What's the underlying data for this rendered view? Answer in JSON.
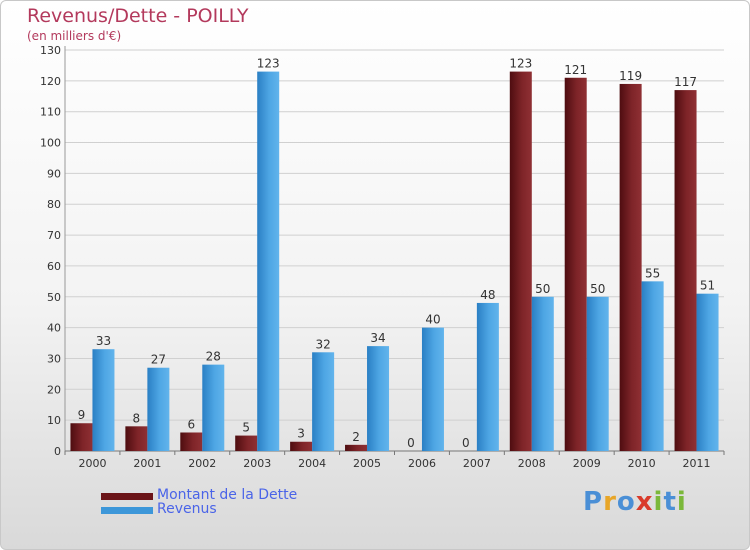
{
  "chart_data": {
    "type": "bar",
    "title": "Revenus/Dette - POILLY",
    "subtitle": "(en milliers d'€)",
    "categories": [
      "2000",
      "2001",
      "2002",
      "2003",
      "2004",
      "2005",
      "2006",
      "2007",
      "2008",
      "2009",
      "2010",
      "2011"
    ],
    "series": [
      {
        "name": "Montant de la Dette",
        "color": "#7a1f22",
        "values": [
          9,
          8,
          6,
          5,
          3,
          2,
          0,
          0,
          123,
          121,
          119,
          117
        ]
      },
      {
        "name": "Revenus",
        "color": "#3d97d9",
        "values": [
          33,
          27,
          28,
          123,
          32,
          34,
          40,
          48,
          50,
          50,
          55,
          51
        ]
      }
    ],
    "ylim": [
      0,
      130
    ],
    "yticks": [
      0,
      10,
      20,
      30,
      40,
      50,
      60,
      70,
      80,
      90,
      100,
      110,
      120,
      130
    ],
    "grid": true,
    "legend": "bottom-left"
  },
  "logo": {
    "letters": [
      {
        "char": "P",
        "color": "#4a8fd6"
      },
      {
        "char": "r",
        "color": "#e8a628"
      },
      {
        "char": "o",
        "color": "#4a8fd6"
      },
      {
        "char": "x",
        "color": "#d93b2b"
      },
      {
        "char": "i",
        "color": "#7bb83a"
      },
      {
        "char": "t",
        "color": "#4a8fd6"
      },
      {
        "char": "i",
        "color": "#7bb83a"
      }
    ]
  }
}
